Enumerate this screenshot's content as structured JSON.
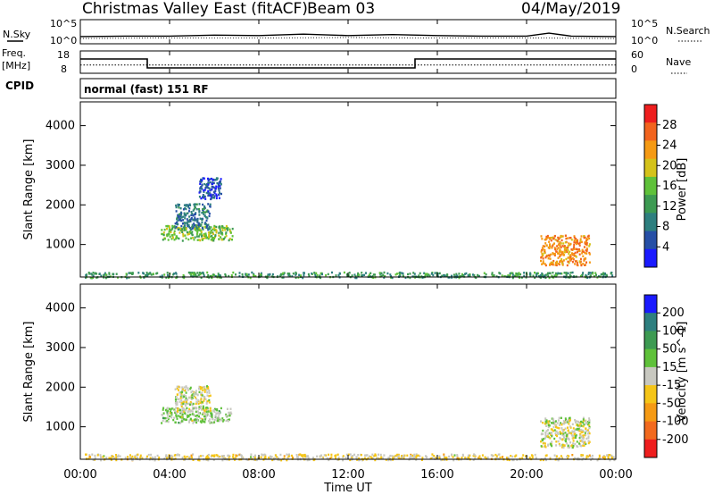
{
  "header": {
    "title": "Christmas Valley East (fitACF)",
    "beam": "Beam 03",
    "date": "04/May/2019"
  },
  "summary_labels": {
    "nsky": "N.Sky",
    "nsearch": "N.Search",
    "freq_line1": "Freq.",
    "freq_line2": "[MHz]",
    "nave": "Nave",
    "cpid": "CPID",
    "mode": "normal (fast) 151 RF"
  },
  "summary_ticks": {
    "noise_left": [
      "10^5",
      "10^0"
    ],
    "noise_right": [
      "10^5",
      "10^0"
    ],
    "freq_left": [
      "18",
      "8"
    ],
    "nave_right": [
      "60",
      "0"
    ]
  },
  "panels": {
    "power": {
      "ylabel": "Slant Range [km]",
      "cbar_label": "Power [dB]",
      "cbar_ticks": [
        "4",
        "8",
        "12",
        "16",
        "20",
        "24",
        "28"
      ]
    },
    "velocity": {
      "ylabel": "Slant Range [km]",
      "cbar_label": "Velocity [m s^-1]",
      "cbar_ticks": [
        "200",
        "100",
        "50",
        "15",
        "-15",
        "-50",
        "-100",
        "-200"
      ]
    }
  },
  "xaxis": {
    "label": "Time UT",
    "ticks": [
      "00:00",
      "04:00",
      "08:00",
      "12:00",
      "16:00",
      "20:00",
      "00:00"
    ]
  },
  "chart_data": [
    {
      "type": "line",
      "panel": "noise",
      "x_unit": "hours UT",
      "xlim": [
        0,
        24
      ],
      "series": [
        {
          "name": "N.Sky",
          "x": [
            0,
            2,
            4,
            6,
            8,
            10,
            12,
            14,
            16,
            18,
            20,
            21,
            22,
            24
          ],
          "y": [
            1.5,
            1.6,
            1.6,
            1.8,
            1.7,
            2.0,
            1.7,
            1.9,
            1.7,
            1.6,
            1.6,
            2.2,
            1.6,
            1.5
          ]
        },
        {
          "name": "N.Search",
          "x": [
            0,
            4,
            8,
            12,
            16,
            20,
            24
          ],
          "y": [
            1.1,
            1.2,
            1.2,
            1.3,
            1.2,
            1.2,
            1.1
          ]
        }
      ]
    },
    {
      "type": "line",
      "panel": "frequency",
      "x_unit": "hours UT",
      "xlim": [
        0,
        24
      ],
      "series": [
        {
          "name": "Freq.",
          "x": [
            0,
            3,
            3,
            15,
            15,
            24
          ],
          "y": [
            14.4,
            14.4,
            10.4,
            10.4,
            14.4,
            14.4
          ]
        },
        {
          "name": "Nave",
          "x": [
            0,
            24
          ],
          "y": [
            22,
            22
          ]
        }
      ],
      "ylim_left": [
        8,
        18
      ],
      "ylim_right": [
        0,
        60
      ]
    },
    {
      "type": "heatmap",
      "panel": "power",
      "xlabel": "Time UT",
      "ylabel": "Slant Range [km]",
      "xlim": [
        0,
        24
      ],
      "ylim": [
        180,
        4600
      ],
      "yticks": [
        1000,
        2000,
        3000,
        4000
      ],
      "colorbar": {
        "label": "Power [dB]",
        "range": [
          0,
          32
        ],
        "colors": [
          "#1a1aff",
          "#264fa6",
          "#2e7f7f",
          "#3d9a52",
          "#5fc13a",
          "#d4c21a",
          "#f59a14",
          "#f2641e",
          "#ee1e1e"
        ]
      },
      "features": [
        {
          "name": "ground scatter",
          "t0": 0.2,
          "t1": 23.9,
          "r0": 180,
          "r1": 320,
          "value": 12
        },
        {
          "name": "dawn arc",
          "t0": 3.6,
          "t1": 6.8,
          "r0": 1120,
          "r1": 1500,
          "value": 16
        },
        {
          "name": "diagonal band",
          "t0": 4.2,
          "t1": 5.8,
          "r0": 1400,
          "r1": 2050,
          "value": 8
        },
        {
          "name": "upper band",
          "t0": 5.3,
          "t1": 6.3,
          "r0": 2150,
          "r1": 2700,
          "value": 5
        },
        {
          "name": "evening echo",
          "t0": 20.6,
          "t1": 22.8,
          "r0": 500,
          "r1": 1250,
          "value": 24
        }
      ]
    },
    {
      "type": "heatmap",
      "panel": "velocity",
      "xlabel": "Time UT",
      "ylabel": "Slant Range [km]",
      "xlim": [
        0,
        24
      ],
      "ylim": [
        180,
        4600
      ],
      "yticks": [
        1000,
        2000,
        3000,
        4000
      ],
      "colorbar": {
        "label": "Velocity [m s^-1]",
        "range": [
          -250,
          250
        ],
        "colors": [
          "#ee1e1e",
          "#f26a1e",
          "#f59a14",
          "#f5c518",
          "#c8c8c0",
          "#5fc13a",
          "#3d9a52",
          "#2e7f7f",
          "#1a1aff"
        ]
      },
      "features": [
        {
          "name": "ground scatter",
          "t0": 0.2,
          "t1": 23.9,
          "r0": 180,
          "r1": 330,
          "value": -30
        },
        {
          "name": "dawn arc",
          "t0": 3.6,
          "t1": 6.8,
          "r0": 1120,
          "r1": 1500,
          "value": 30
        },
        {
          "name": "diagonal band",
          "t0": 4.2,
          "t1": 5.8,
          "r0": 1400,
          "r1": 2050,
          "value": 0
        },
        {
          "name": "evening echo",
          "t0": 20.6,
          "t1": 22.8,
          "r0": 500,
          "r1": 1250,
          "value": 0
        }
      ]
    }
  ]
}
